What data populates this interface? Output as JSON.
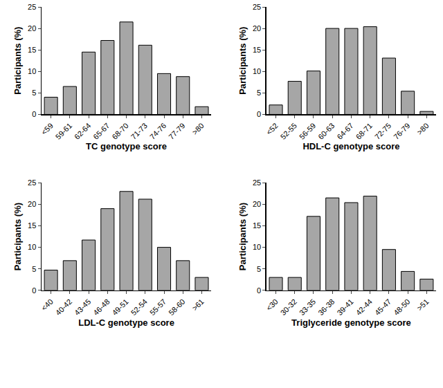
{
  "chart_data": [
    {
      "type": "bar",
      "x_label": "TC genotype score",
      "y_label": "Participants (%)",
      "categories": [
        "<59",
        "59-61",
        "62-64",
        "65-67",
        "68-70",
        "71-73",
        "74-76",
        "77-79",
        ">80"
      ],
      "values": [
        4.0,
        6.5,
        14.5,
        17.2,
        21.5,
        16.1,
        9.5,
        8.8,
        1.8
      ],
      "color": "#a6a6a6",
      "ylim": [
        0,
        25
      ],
      "yticks": [
        0,
        5,
        10,
        15,
        20,
        25
      ],
      "grid": false
    },
    {
      "type": "bar",
      "x_label": "HDL-C genotype score",
      "y_label": "Participants (%)",
      "categories": [
        "<52",
        "52-55",
        "56-59",
        "60-63",
        "64-67",
        "68-71",
        "72-75",
        "76-79",
        ">80"
      ],
      "values": [
        2.2,
        7.7,
        10.1,
        20.0,
        20.0,
        20.4,
        13.1,
        5.4,
        0.7
      ],
      "color": "#a6a6a6",
      "ylim": [
        0,
        25
      ],
      "yticks": [
        0,
        5,
        10,
        15,
        20,
        25
      ],
      "grid": false
    },
    {
      "type": "bar",
      "x_label": "LDL-C genotype score",
      "y_label": "Participants (%)",
      "categories": [
        "<40",
        "40-42",
        "43-45",
        "46-48",
        "49-51",
        "52-54",
        "55-57",
        "58-60",
        ">61"
      ],
      "values": [
        4.7,
        6.9,
        11.7,
        19.0,
        23.0,
        21.2,
        10.0,
        6.9,
        3.0
      ],
      "color": "#a6a6a6",
      "ylim": [
        0,
        25
      ],
      "yticks": [
        0,
        5,
        10,
        15,
        20,
        25
      ],
      "grid": false
    },
    {
      "type": "bar",
      "x_label": "Triglyceride genotype score",
      "y_label": "Participants (%)",
      "categories": [
        "<30",
        "30-32",
        "33-35",
        "36-38",
        "39-41",
        "42-44",
        "45-47",
        "48-50",
        ">51"
      ],
      "values": [
        3.0,
        3.0,
        17.2,
        21.5,
        20.4,
        21.9,
        9.5,
        4.4,
        2.6
      ],
      "color": "#a6a6a6",
      "ylim": [
        0,
        25
      ],
      "yticks": [
        0,
        5,
        10,
        15,
        20,
        25
      ],
      "grid": false
    }
  ]
}
